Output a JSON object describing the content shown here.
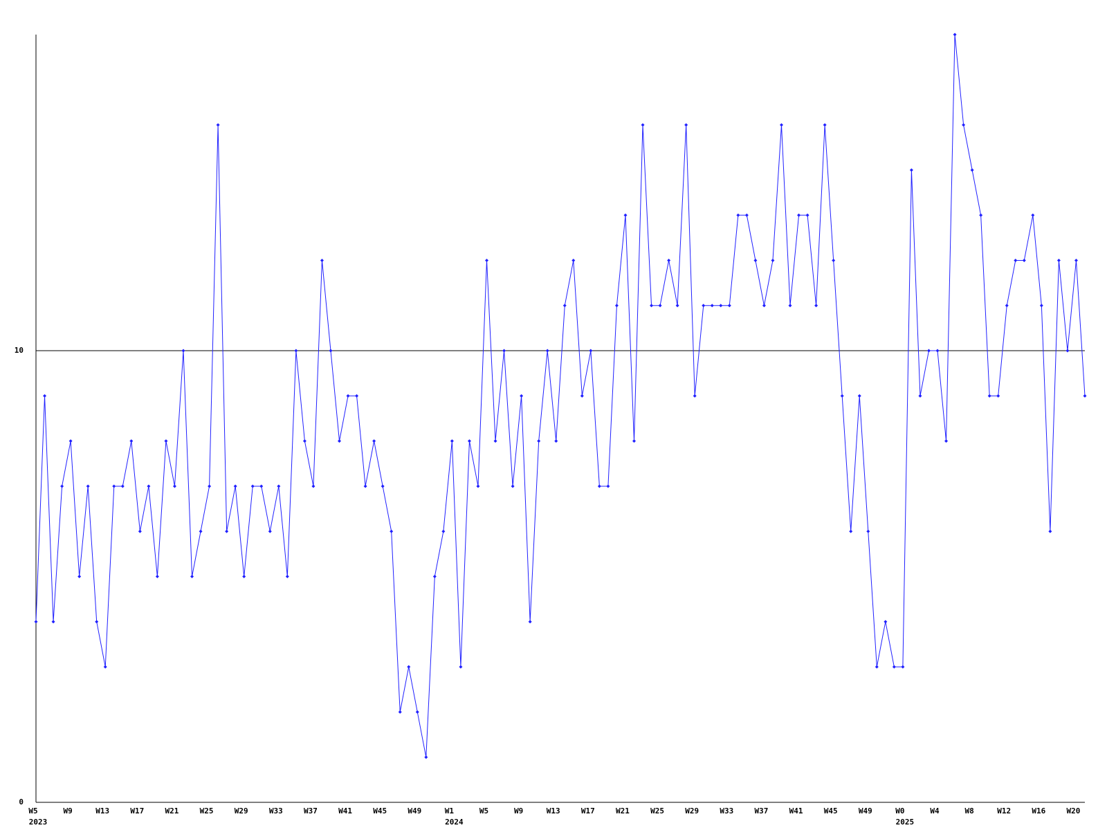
{
  "chart_data": {
    "type": "line",
    "color": "#2020ff",
    "categories": [
      "W5",
      null,
      null,
      null,
      "W9",
      null,
      null,
      null,
      "W13",
      null,
      null,
      null,
      "W17",
      null,
      null,
      null,
      "W21",
      null,
      null,
      null,
      "W25",
      null,
      null,
      null,
      "W29",
      null,
      null,
      null,
      "W33",
      null,
      null,
      null,
      "W37",
      null,
      null,
      null,
      "W41",
      null,
      null,
      null,
      "W45",
      null,
      null,
      null,
      "W49",
      null,
      null,
      null,
      "W1",
      null,
      null,
      null,
      "W5",
      null,
      null,
      null,
      "W9",
      null,
      null,
      null,
      "W13",
      null,
      null,
      null,
      "W17",
      null,
      null,
      null,
      "W21",
      null,
      null,
      null,
      "W25",
      null,
      null,
      null,
      "W29",
      null,
      null,
      null,
      "W33",
      null,
      null,
      null,
      "W37",
      null,
      null,
      null,
      "W41",
      null,
      null,
      null,
      "W45",
      null,
      null,
      null,
      "W49",
      null,
      null,
      null,
      "W0",
      null,
      null,
      null,
      "W4",
      null,
      null,
      null,
      "W8",
      null,
      null,
      null,
      "W12",
      null,
      null,
      null,
      "W16",
      null,
      null,
      null,
      "W20",
      null
    ],
    "years": [
      "2023",
      null,
      null,
      null,
      null,
      null,
      null,
      null,
      null,
      null,
      null,
      null,
      null,
      null,
      null,
      null,
      null,
      null,
      null,
      null,
      null,
      null,
      null,
      null,
      null,
      null,
      null,
      null,
      null,
      null,
      null,
      null,
      null,
      null,
      null,
      null,
      null,
      null,
      null,
      null,
      null,
      null,
      null,
      null,
      null,
      null,
      null,
      null,
      "2024",
      null,
      null,
      null,
      null,
      null,
      null,
      null,
      null,
      null,
      null,
      null,
      null,
      null,
      null,
      null,
      null,
      null,
      null,
      null,
      null,
      null,
      null,
      null,
      null,
      null,
      null,
      null,
      null,
      null,
      null,
      null,
      null,
      null,
      null,
      null,
      null,
      null,
      null,
      null,
      null,
      null,
      null,
      null,
      null,
      null,
      null,
      null,
      null,
      null,
      null,
      null,
      "2025",
      null,
      null,
      null,
      null,
      null,
      null,
      null,
      null,
      null,
      null,
      null,
      null,
      null,
      null,
      null,
      null,
      null,
      null,
      null,
      null,
      null
    ],
    "values": [
      4,
      9,
      4,
      7,
      8,
      5,
      7,
      4,
      3,
      7,
      7,
      8,
      6,
      7,
      5,
      8,
      7,
      10,
      5,
      6,
      7,
      15,
      6,
      7,
      5,
      7,
      7,
      6,
      7,
      5,
      10,
      8,
      7,
      12,
      10,
      8,
      9,
      9,
      7,
      8,
      7,
      6,
      2,
      3,
      2,
      1,
      5,
      6,
      8,
      3,
      8,
      7,
      12,
      8,
      10,
      7,
      9,
      4,
      8,
      10,
      8,
      11,
      12,
      9,
      10,
      7,
      7,
      11,
      13,
      8,
      15,
      11,
      11,
      12,
      11,
      15,
      9,
      11,
      11,
      11,
      11,
      13,
      13,
      12,
      11,
      12,
      15,
      11,
      13,
      13,
      11,
      15,
      12,
      9,
      6,
      9,
      6,
      3,
      4,
      3,
      3,
      14,
      9,
      10,
      10,
      8,
      17,
      15,
      14,
      13,
      9,
      9,
      11,
      12,
      12,
      13,
      11,
      6,
      12,
      10,
      12,
      9
    ],
    "ylim": [
      0,
      17
    ],
    "yticks": [
      0,
      10
    ],
    "grid": true
  }
}
